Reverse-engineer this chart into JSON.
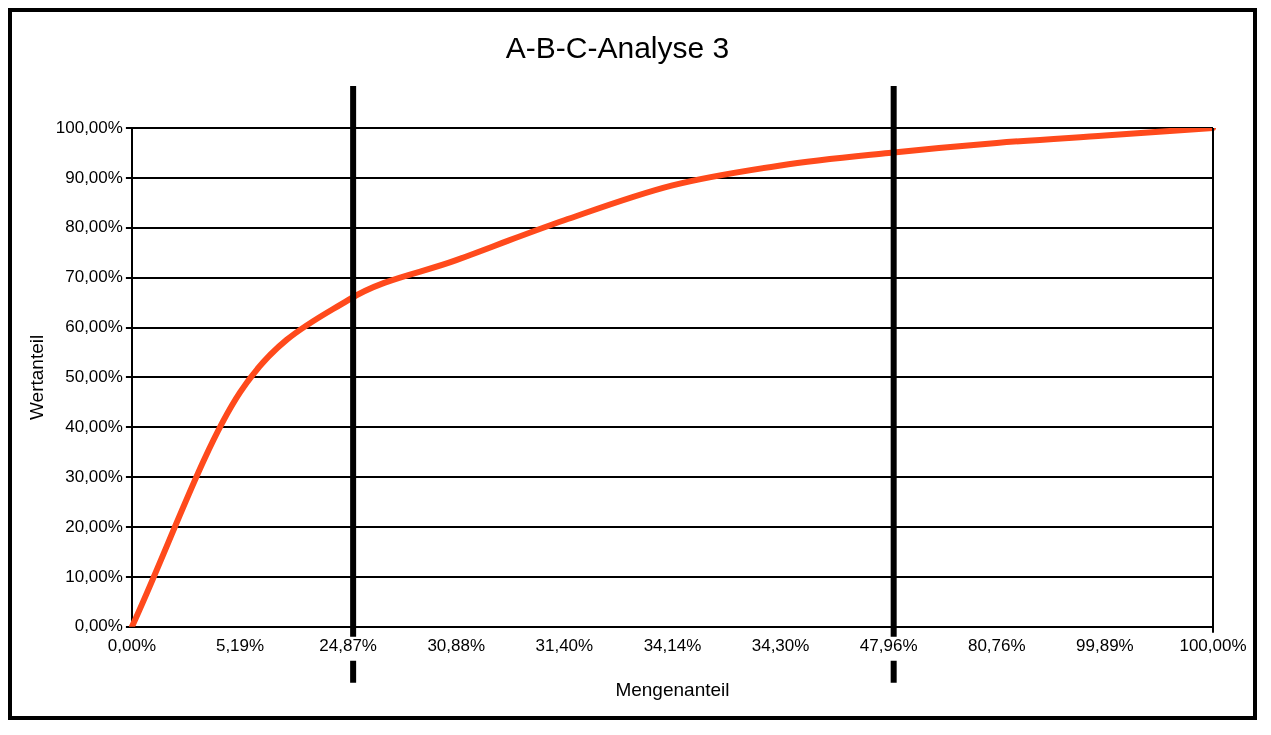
{
  "chart_data": {
    "type": "line",
    "title": "A-B-C-Analyse 3",
    "xlabel": "Mengenanteil",
    "ylabel": "Wertanteil",
    "categories": [
      "0,00%",
      "5,19%",
      "24,87%",
      "30,88%",
      "31,40%",
      "34,14%",
      "34,30%",
      "47,96%",
      "80,76%",
      "99,89%",
      "100,00%"
    ],
    "series": [
      {
        "color": "#ff4a1c",
        "values": [
          0,
          47,
          65.5,
          73.5,
          81.5,
          88.5,
          92.5,
          95,
          97,
          98.5,
          100
        ]
      }
    ],
    "ylim": [
      0,
      100
    ],
    "yticks": [
      {
        "value": 0,
        "label": "0,00%"
      },
      {
        "value": 10,
        "label": "10,00%"
      },
      {
        "value": 20,
        "label": "20,00%"
      },
      {
        "value": 30,
        "label": "30,00%"
      },
      {
        "value": 40,
        "label": "40,00%"
      },
      {
        "value": 50,
        "label": "50,00%"
      },
      {
        "value": 60,
        "label": "60,00%"
      },
      {
        "value": 70,
        "label": "70,00%"
      },
      {
        "value": 80,
        "label": "80,00%"
      },
      {
        "value": 90,
        "label": "90,00%"
      },
      {
        "value": 100,
        "label": "100,00%"
      }
    ],
    "grid": "y",
    "legend": false,
    "marker": "none",
    "line_style": "solid",
    "ref_lines": [
      {
        "axis": "x",
        "value": "24,87%",
        "color": "#000000"
      },
      {
        "axis": "x",
        "value": "47,96%",
        "color": "#000000"
      }
    ]
  }
}
